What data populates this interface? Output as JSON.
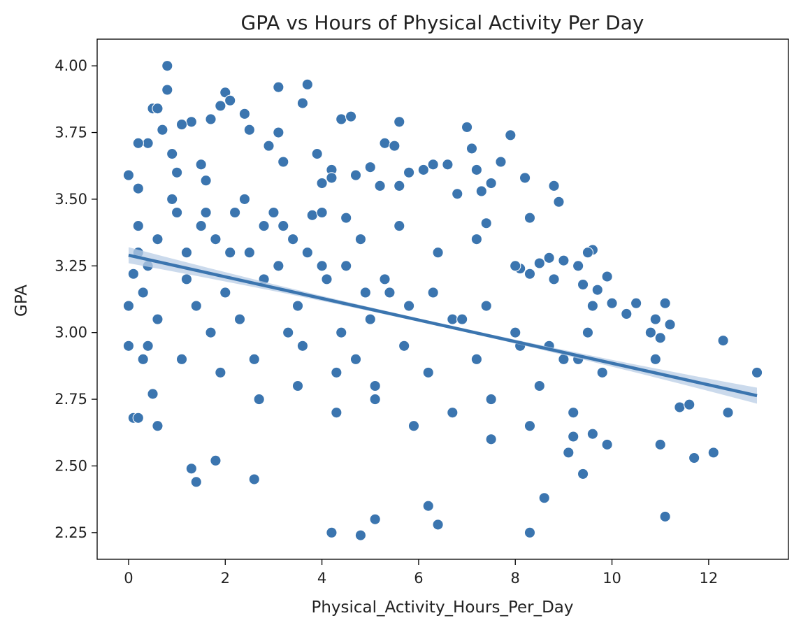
{
  "colors": {
    "marker_fill": "#3b75af",
    "marker_edge": "#ffffff",
    "regression_line": "#3b75af",
    "confidence_band": "#b9cde6",
    "axes_frame": "#000000",
    "background": "#ffffff"
  },
  "chart_data": {
    "type": "scatter",
    "title": "GPA vs Hours of Physical Activity Per Day",
    "xlabel": "Physical_Activity_Hours_Per_Day",
    "ylabel": "GPA",
    "xlim": [
      -0.65,
      13.65
    ],
    "ylim": [
      2.15,
      4.1
    ],
    "x_ticks": [
      0,
      2,
      4,
      6,
      8,
      10,
      12
    ],
    "x_tick_labels": [
      "0",
      "2",
      "4",
      "6",
      "8",
      "10",
      "12"
    ],
    "y_ticks": [
      2.25,
      2.5,
      2.75,
      3.0,
      3.25,
      3.5,
      3.75,
      4.0
    ],
    "y_tick_labels": [
      "2.25",
      "2.50",
      "2.75",
      "3.00",
      "3.25",
      "3.50",
      "3.75",
      "4.00"
    ],
    "grid": false,
    "legend": "none",
    "regression": {
      "intercept": 3.29,
      "slope": -0.0405,
      "x_range": [
        0,
        13
      ],
      "ci_halfwidth_at_ends": 0.03,
      "ci_halfwidth_at_center": 0.006
    },
    "series": [
      {
        "x": [
          0.8,
          0.8,
          3.1,
          2.0,
          3.7,
          2.1,
          3.6,
          0.5,
          0.6,
          1.9,
          1.3,
          1.7,
          4.4,
          4.6,
          2.4,
          5.6,
          2.5,
          0.4,
          0.7,
          1.1,
          7.0,
          3.1,
          7.9,
          0.2,
          0.9,
          1.5,
          3.9,
          2.9,
          5.3,
          5.5,
          7.1,
          1.0,
          5.0,
          3.2,
          4.2,
          7.7,
          7.2,
          0.0,
          6.6,
          6.3,
          6.1,
          5.8,
          4.7,
          5.6,
          7.5,
          8.2,
          7.3,
          8.8,
          5.2,
          4.2,
          4.0,
          1.6,
          0.2,
          6.8,
          8.9,
          3.0,
          4.5,
          7.4,
          8.3,
          3.8,
          9.6,
          8.7,
          9.5,
          9.0,
          8.5,
          8.3,
          9.9,
          9.3,
          8.1,
          9.4,
          9.7,
          10.0,
          10.3,
          10.9,
          10.5,
          11.1,
          10.8,
          11.2,
          11.0,
          12.3,
          13.0,
          10.9,
          11.4,
          11.6,
          12.4,
          12.1,
          11.7,
          11.0,
          11.1,
          9.6,
          9.9,
          9.2,
          9.4,
          8.6,
          8.3,
          6.2,
          6.4,
          4.8,
          4.2,
          5.1,
          1.3,
          1.4,
          2.6,
          1.8,
          0.1,
          0.2,
          0.6,
          0.3,
          0.5,
          0.0,
          0.0,
          0.1,
          0.2,
          0.4,
          0.3,
          0.2,
          0.6,
          1.2,
          1.4,
          1.7,
          2.0,
          2.3,
          2.6,
          2.8,
          2.1,
          3.3,
          3.5,
          3.6,
          4.0,
          4.3,
          4.4,
          4.7,
          5.0,
          5.1,
          5.4,
          5.7,
          6.2,
          6.7,
          7.2,
          7.5,
          8.1,
          8.5,
          9.0,
          9.2,
          9.5,
          9.8,
          0.6,
          1.0,
          1.2,
          1.5,
          1.8,
          2.2,
          2.5,
          2.8,
          3.1,
          3.4,
          3.7,
          4.1,
          4.5,
          4.9,
          5.3,
          5.8,
          6.3,
          6.9,
          7.4,
          8.0,
          8.7,
          9.3,
          0.9,
          1.6,
          2.4,
          3.2,
          4.0,
          4.8,
          5.6,
          6.4,
          7.2,
          8.0,
          8.8,
          9.6,
          0.4,
          1.1,
          1.9,
          2.7,
          3.5,
          4.3,
          5.1,
          5.9,
          6.7,
          7.5,
          8.3,
          9.1
        ],
        "y": [
          4.0,
          3.91,
          3.92,
          3.9,
          3.93,
          3.87,
          3.86,
          3.84,
          3.84,
          3.85,
          3.79,
          3.8,
          3.8,
          3.81,
          3.82,
          3.79,
          3.76,
          3.71,
          3.76,
          3.78,
          3.77,
          3.75,
          3.74,
          3.71,
          3.67,
          3.63,
          3.67,
          3.7,
          3.71,
          3.7,
          3.69,
          3.6,
          3.62,
          3.64,
          3.61,
          3.64,
          3.61,
          3.59,
          3.63,
          3.63,
          3.61,
          3.6,
          3.59,
          3.55,
          3.56,
          3.58,
          3.53,
          3.55,
          3.55,
          3.58,
          3.56,
          3.57,
          3.54,
          3.52,
          3.49,
          3.45,
          3.43,
          3.41,
          3.43,
          3.44,
          3.31,
          3.28,
          3.3,
          3.27,
          3.26,
          3.22,
          3.21,
          3.25,
          3.24,
          3.18,
          3.16,
          3.11,
          3.07,
          3.05,
          3.11,
          3.11,
          3.0,
          3.03,
          2.98,
          2.97,
          2.85,
          2.9,
          2.72,
          2.73,
          2.7,
          2.55,
          2.53,
          2.58,
          2.31,
          2.62,
          2.58,
          2.61,
          2.47,
          2.38,
          2.25,
          2.35,
          2.28,
          2.24,
          2.25,
          2.3,
          2.49,
          2.44,
          2.45,
          2.52,
          2.68,
          2.68,
          2.65,
          2.9,
          2.77,
          2.95,
          3.1,
          3.22,
          3.3,
          3.25,
          3.15,
          3.4,
          3.05,
          3.2,
          3.1,
          3.0,
          3.15,
          3.05,
          2.9,
          3.2,
          3.3,
          3.0,
          3.1,
          2.95,
          3.25,
          2.85,
          3.0,
          2.9,
          3.05,
          2.8,
          3.15,
          2.95,
          2.85,
          3.05,
          2.9,
          2.75,
          2.95,
          2.8,
          2.9,
          2.7,
          3.0,
          2.85,
          3.35,
          3.45,
          3.3,
          3.4,
          3.35,
          3.45,
          3.3,
          3.4,
          3.25,
          3.35,
          3.3,
          3.2,
          3.25,
          3.15,
          3.2,
          3.1,
          3.15,
          3.05,
          3.1,
          3.0,
          2.95,
          2.9,
          3.5,
          3.45,
          3.5,
          3.4,
          3.45,
          3.35,
          3.4,
          3.3,
          3.35,
          3.25,
          3.2,
          3.1,
          2.95,
          2.9,
          2.85,
          2.75,
          2.8,
          2.7,
          2.75,
          2.65,
          2.7,
          2.6,
          2.65,
          2.55
        ]
      }
    ]
  }
}
